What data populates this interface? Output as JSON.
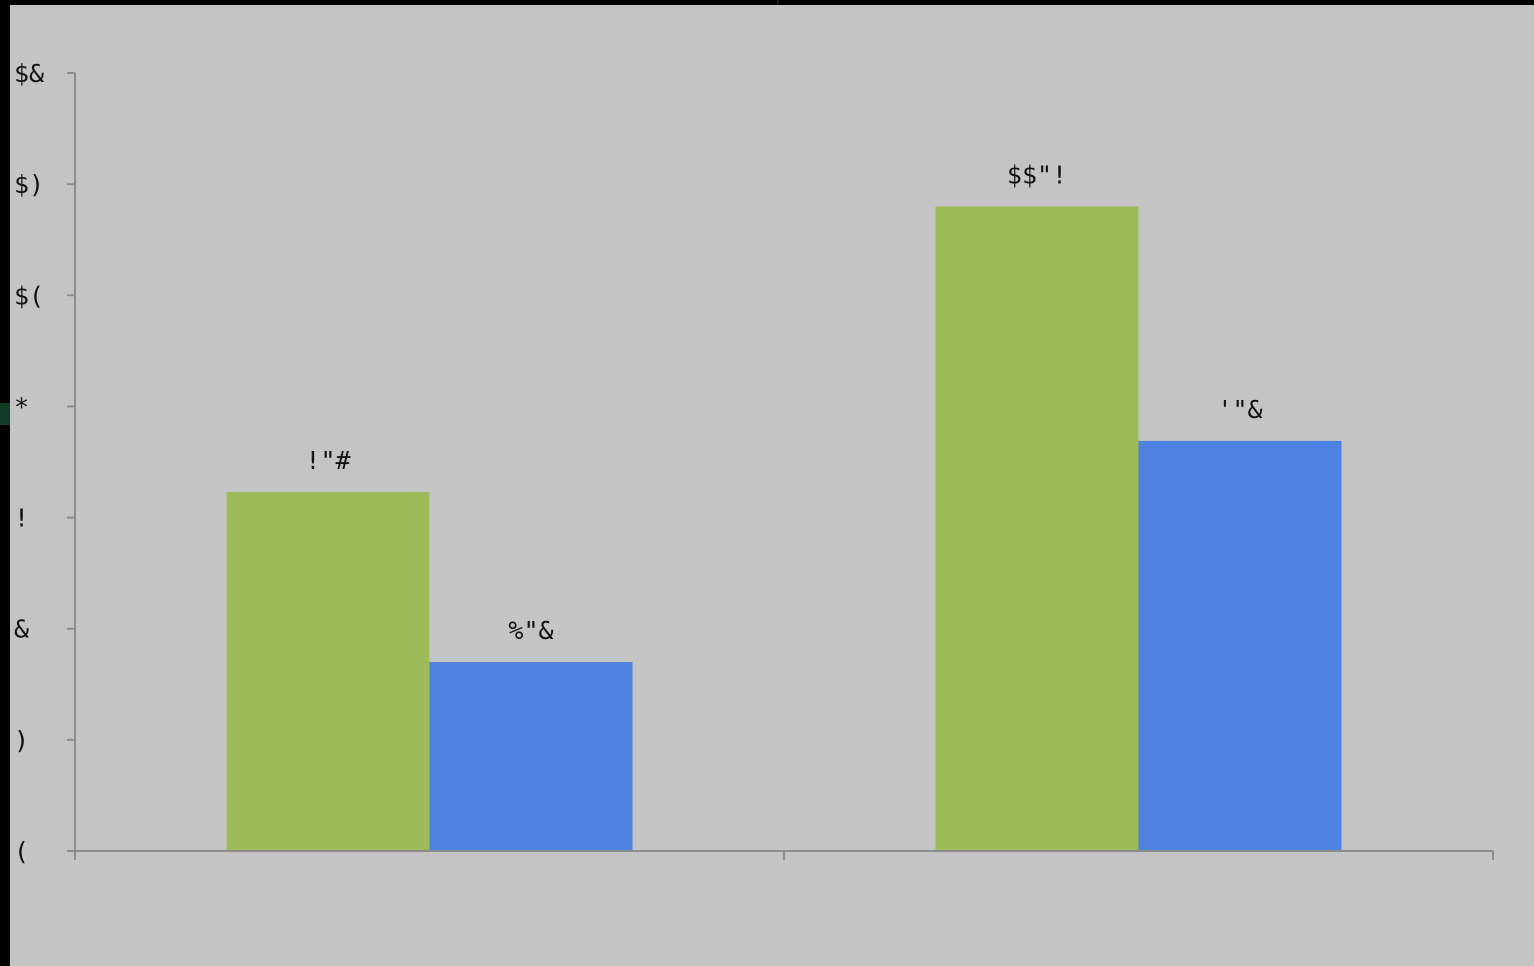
{
  "colors": {
    "background": "#c4c4c4",
    "axis": "#8c8c8c",
    "series_green": "#9dbb59",
    "series_blue": "#4f81e1"
  },
  "chart_data": {
    "type": "bar",
    "title": "",
    "xlabel": "",
    "ylabel": "",
    "categories": [
      "",
      ""
    ],
    "grid": false,
    "legend": "none",
    "ylim": [
      0,
      7
    ],
    "y_ticks": [
      {
        "value": 0,
        "label": "("
      },
      {
        "value": 1,
        "label": ")"
      },
      {
        "value": 2,
        "label": "&"
      },
      {
        "value": 3,
        "label": "!"
      },
      {
        "value": 4,
        "label": "*"
      },
      {
        "value": 5,
        "label": "$("
      },
      {
        "value": 6,
        "label": "$)"
      },
      {
        "value": 7,
        "label": "$&"
      }
    ],
    "series": [
      {
        "color": "#9dbb59",
        "values": [
          3.23,
          5.8
        ],
        "data_labels": [
          "!\"#",
          "$$\"!"
        ]
      },
      {
        "color": "#4f81e1",
        "values": [
          1.7,
          3.69
        ],
        "data_labels": [
          "%\"&",
          "'\"&"
        ]
      }
    ]
  }
}
